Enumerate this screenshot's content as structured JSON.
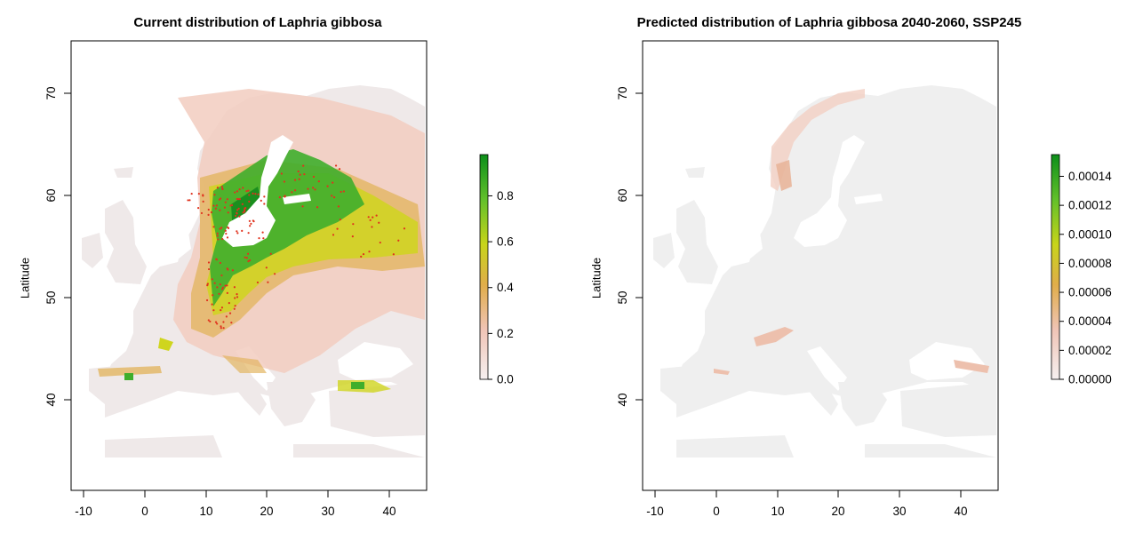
{
  "maps": [
    {
      "title": "Current distribution of Laphria gibbosa",
      "ylabel": "Latitude",
      "x_ticks": [
        "-10",
        "0",
        "10",
        "20",
        "30",
        "40"
      ],
      "y_ticks": [
        "70",
        "60",
        "50",
        "40"
      ],
      "legend_ticks": [
        "0.8",
        "0.6",
        "0.4",
        "0.2",
        "0.0"
      ],
      "legend_max": 0.98,
      "occurrence_points": "red dots",
      "colors": {
        "land": "#efe9e9",
        "low": "#f2c7b8",
        "mid": "#d9b94a",
        "high": "#2e9e2a",
        "points": "#e0321e"
      }
    },
    {
      "title": "Predicted distribution of Laphria gibbosa 2040-2060, SSP245",
      "ylabel": "Latitude",
      "x_ticks": [
        "-10",
        "0",
        "10",
        "20",
        "30",
        "40"
      ],
      "y_ticks": [
        "70",
        "60",
        "50",
        "40"
      ],
      "legend_ticks": [
        "0.00014",
        "0.00012",
        "0.00010",
        "0.00008",
        "0.00006",
        "0.00004",
        "0.00002",
        "0.00000"
      ],
      "legend_max": 0.000155,
      "colors": {
        "land": "#efefef",
        "low": "#f0c9bd",
        "points": "#e08a5a"
      }
    }
  ]
}
